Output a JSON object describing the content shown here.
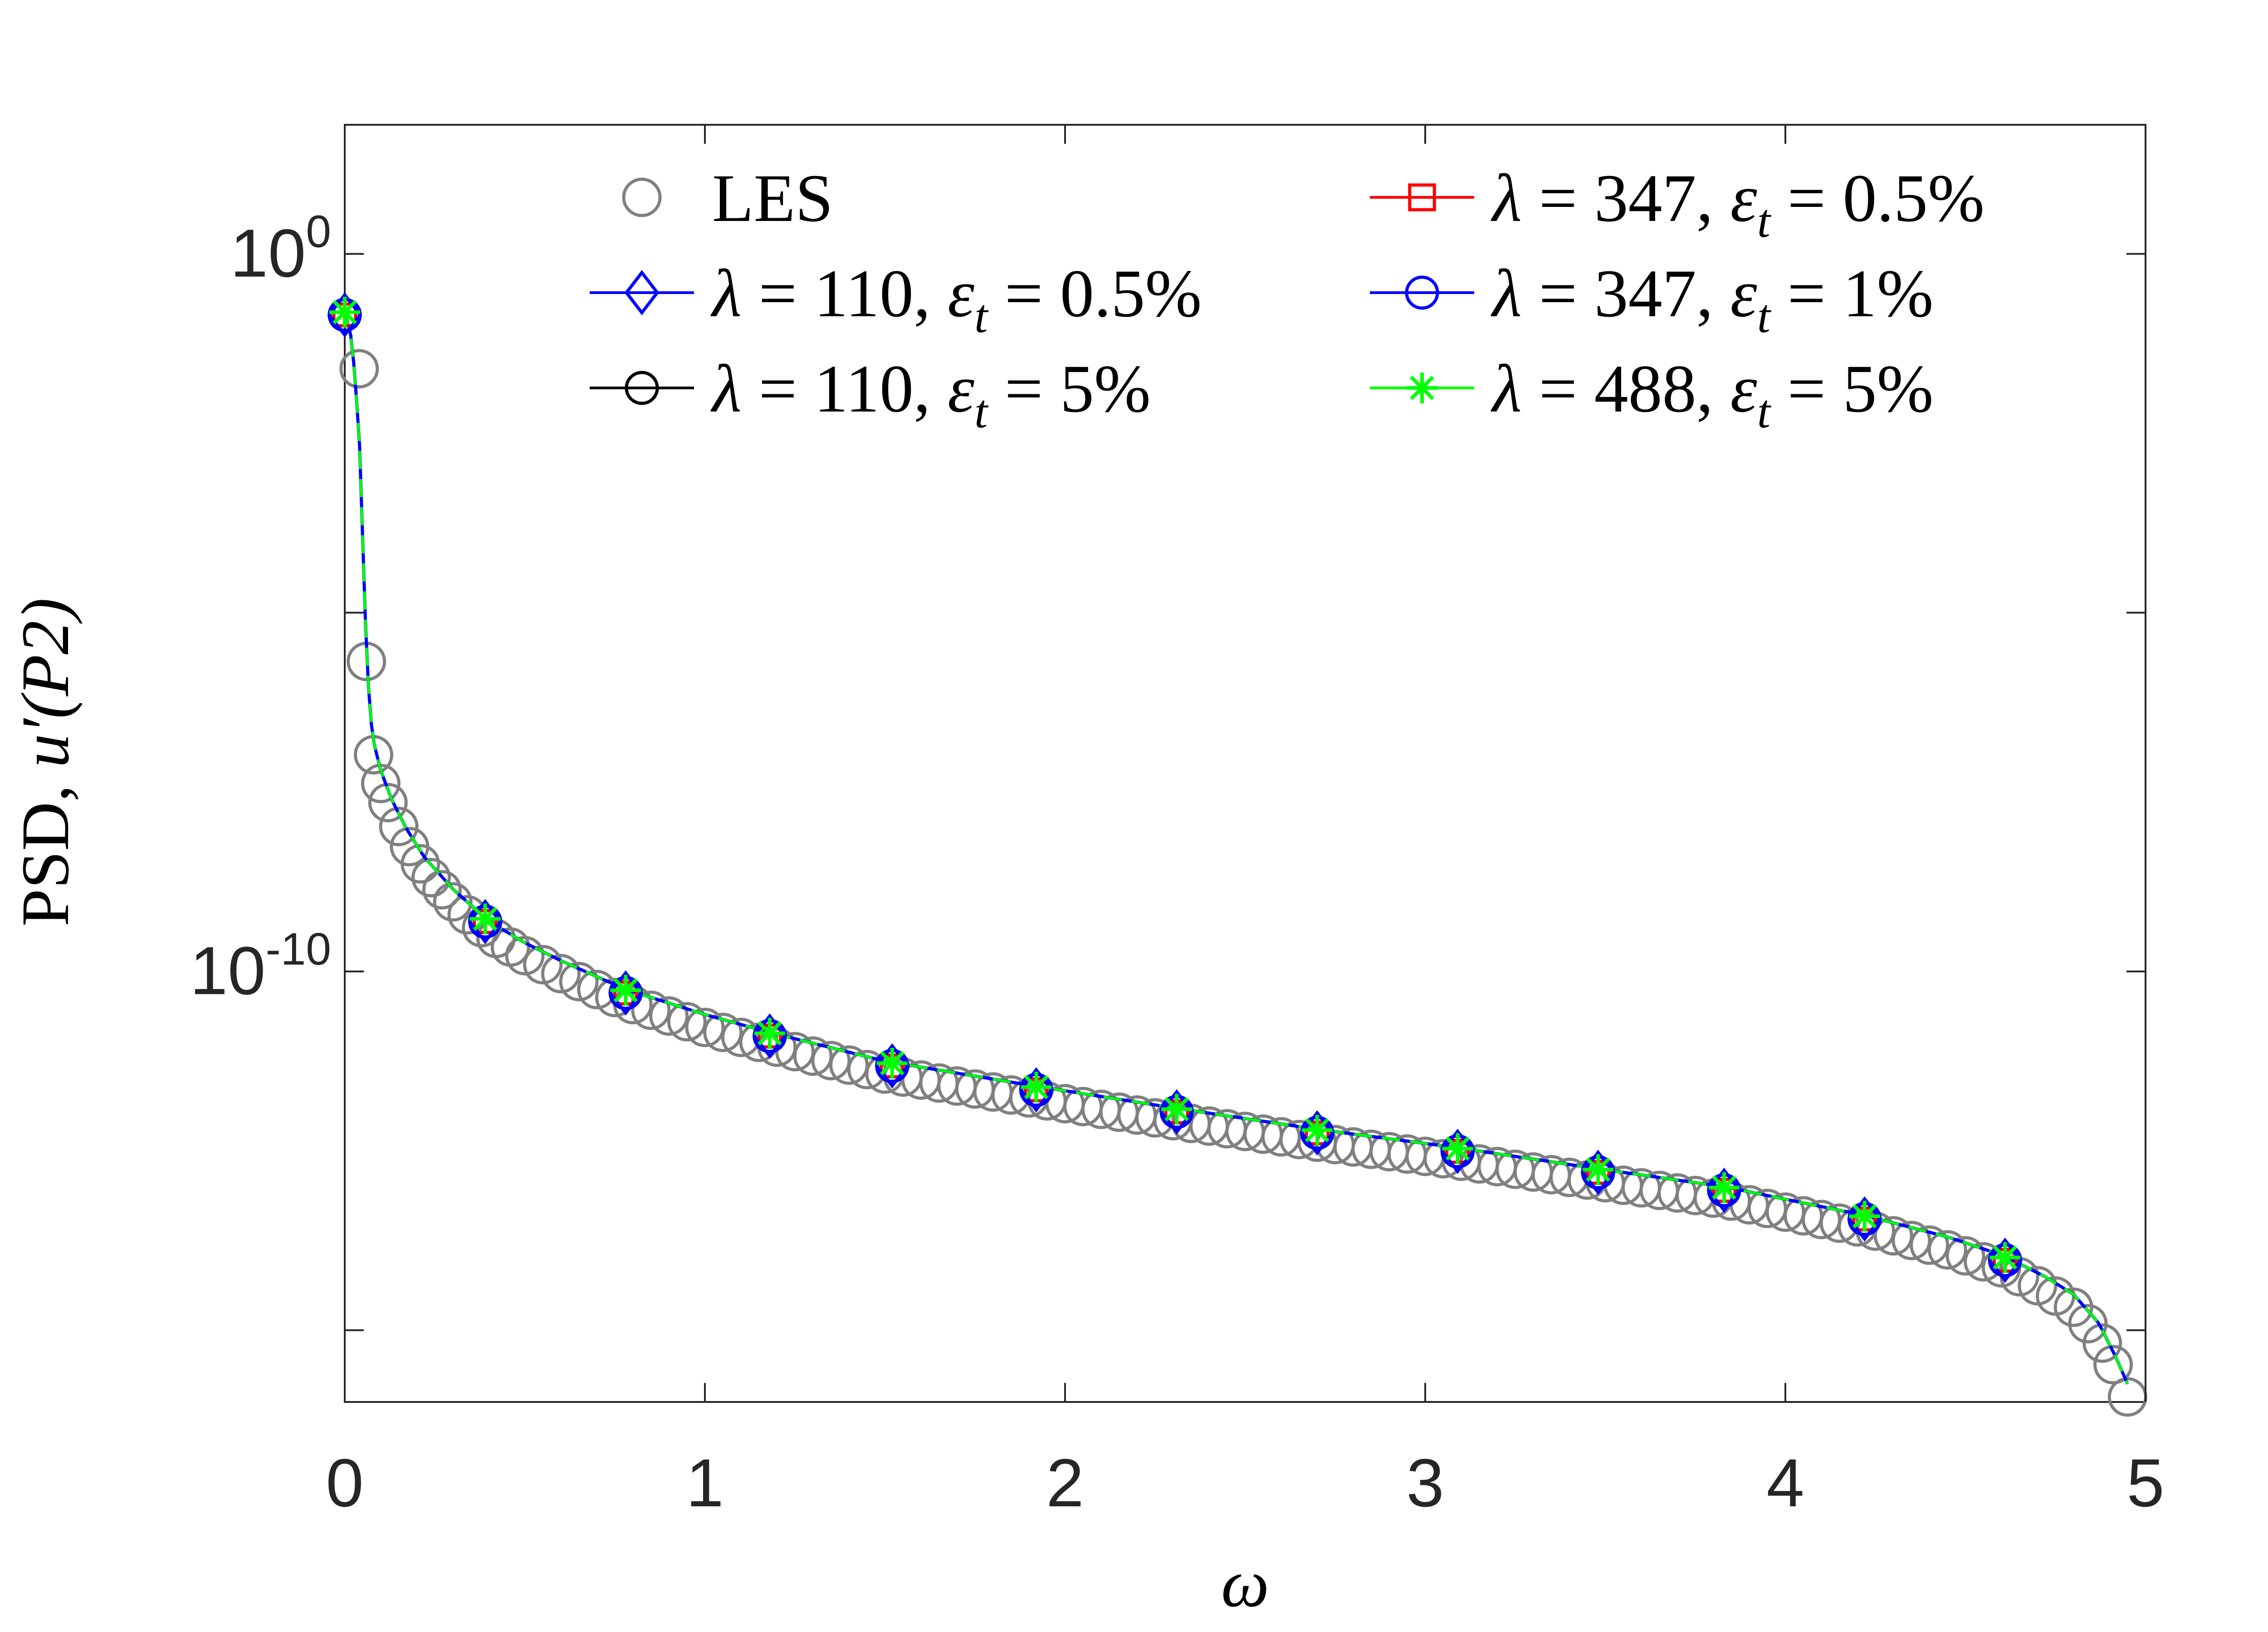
{
  "chart_data": {
    "type": "line",
    "x_label": "ω",
    "y_label_prefix": "PSD, ",
    "y_label_math": "u′(P2)",
    "xlim": [
      0,
      5
    ],
    "ylim_exponent": [
      -16,
      1.8
    ],
    "y_scale": "log",
    "x_ticks": [
      "0",
      "1",
      "2",
      "3",
      "4",
      "5"
    ],
    "y_ticks": [
      {
        "base": "10",
        "exp": "0",
        "value_exp": 0
      },
      {
        "base": "10",
        "exp": "-10",
        "value_exp": -10
      }
    ],
    "grid": false,
    "legend_placement": "top",
    "colors": {
      "les": "#808080",
      "blue": "#0000ff",
      "black": "#000000",
      "red": "#ff0000",
      "green": "#00ff00"
    },
    "legend": [
      {
        "key": "les",
        "label": "LES",
        "marker": "circle",
        "color": "#808080",
        "line": false
      },
      {
        "key": "s347_05",
        "label": "λ = 347,  ε_t = 0.5%",
        "marker": "square",
        "color": "#ff0000",
        "line": true
      },
      {
        "key": "s110_05",
        "label": "λ = 110,  ε_t = 0.5%",
        "marker": "diamond",
        "color": "#0000ff",
        "line": true
      },
      {
        "key": "s347_1",
        "label": "λ = 347,  ε_t = 1%",
        "marker": "circle",
        "color": "#0000ff",
        "line": true
      },
      {
        "key": "s110_5",
        "label": "λ = 110,  ε_t = 5%",
        "marker": "circle",
        "color": "#000000",
        "line": true
      },
      {
        "key": "s488_5",
        "label": "λ = 488,  ε_t = 5%",
        "marker": "star",
        "color": "#00ff00",
        "line": true
      }
    ],
    "curve_log10": [
      [
        0.0,
        -0.8
      ],
      [
        0.02,
        -1.2
      ],
      [
        0.04,
        -2.5
      ],
      [
        0.05,
        -4.0
      ],
      [
        0.06,
        -5.5
      ],
      [
        0.07,
        -6.4
      ],
      [
        0.08,
        -6.8
      ],
      [
        0.1,
        -7.2
      ],
      [
        0.13,
        -7.6
      ],
      [
        0.17,
        -8.0
      ],
      [
        0.22,
        -8.4
      ],
      [
        0.3,
        -8.85
      ],
      [
        0.4,
        -9.3
      ],
      [
        0.5,
        -9.6
      ],
      [
        0.6,
        -9.85
      ],
      [
        0.78,
        -10.25
      ],
      [
        1.0,
        -10.6
      ],
      [
        1.18,
        -10.85
      ],
      [
        1.5,
        -11.25
      ],
      [
        1.92,
        -11.6
      ],
      [
        2.3,
        -11.9
      ],
      [
        2.7,
        -12.2
      ],
      [
        3.08,
        -12.45
      ],
      [
        3.48,
        -12.75
      ],
      [
        3.83,
        -13.0
      ],
      [
        4.22,
        -13.4
      ],
      [
        4.45,
        -13.7
      ],
      [
        4.6,
        -13.95
      ],
      [
        4.72,
        -14.25
      ],
      [
        4.8,
        -14.5
      ],
      [
        4.87,
        -14.9
      ],
      [
        4.92,
        -15.4
      ],
      [
        4.95,
        -15.75
      ]
    ],
    "les_x": [
      0.04,
      0.06,
      0.08,
      0.1,
      0.12,
      0.15,
      0.18,
      0.21,
      0.24,
      0.27,
      0.3,
      0.34,
      0.38,
      0.42,
      0.46,
      0.5,
      0.55,
      0.6,
      0.65,
      0.7,
      0.75,
      0.8,
      0.85,
      0.9,
      0.95,
      1.0,
      1.05,
      1.1,
      1.15,
      1.2,
      1.25,
      1.3,
      1.35,
      1.4,
      1.45,
      1.5,
      1.55,
      1.6,
      1.65,
      1.7,
      1.75,
      1.8,
      1.85,
      1.9,
      1.95,
      2.0,
      2.05,
      2.1,
      2.15,
      2.2,
      2.25,
      2.3,
      2.35,
      2.4,
      2.45,
      2.5,
      2.55,
      2.6,
      2.65,
      2.7,
      2.75,
      2.8,
      2.85,
      2.9,
      2.95,
      3.0,
      3.05,
      3.1,
      3.15,
      3.2,
      3.25,
      3.3,
      3.35,
      3.4,
      3.45,
      3.5,
      3.55,
      3.6,
      3.65,
      3.7,
      3.75,
      3.8,
      3.85,
      3.9,
      3.95,
      4.0,
      4.05,
      4.1,
      4.15,
      4.2,
      4.25,
      4.3,
      4.35,
      4.4,
      4.45,
      4.5,
      4.55,
      4.6,
      4.65,
      4.7,
      4.75,
      4.8,
      4.84,
      4.88,
      4.91,
      4.95
    ],
    "marker_x": [
      0.0,
      0.39,
      0.78,
      1.18,
      1.52,
      1.92,
      2.31,
      2.7,
      3.09,
      3.48,
      3.83,
      4.22,
      4.61
    ]
  }
}
